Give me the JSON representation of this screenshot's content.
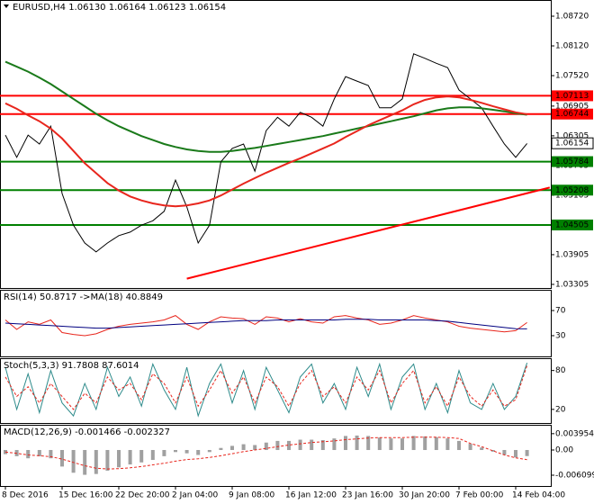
{
  "chart_data": [
    {
      "type": "line",
      "title": "EURUSD,H4 1.06130 1.06164 1.06123 1.06154",
      "categories": [
        "8 Dec 2016",
        null,
        null,
        null,
        null,
        "15 Dec 16:00",
        null,
        null,
        null,
        null,
        "22 Dec 20:00",
        null,
        null,
        null,
        null,
        "2 Jan 04:00",
        null,
        null,
        null,
        null,
        "9 Jan 08:00",
        null,
        null,
        null,
        null,
        "16 Jan 12:00",
        null,
        null,
        null,
        null,
        "23 Jan 16:00",
        null,
        null,
        null,
        null,
        "30 Jan 20:00",
        null,
        null,
        null,
        null,
        "7 Feb 00:00",
        null,
        null,
        null,
        null,
        "14 Feb 04:00",
        null
      ],
      "ylim": [
        1.03232,
        1.09047
      ],
      "yticks": [
        {
          "value": 1.0872,
          "label": "1.08720"
        },
        {
          "value": 1.0812,
          "label": "1.08120"
        },
        {
          "value": 1.0752,
          "label": "1.07520"
        },
        1.06905,
        1.06305,
        1.05705,
        1.05105,
        1.04505,
        1.03905,
        1.03305
      ],
      "series": [
        {
          "color": "#000000",
          "style": "solid",
          "values": [
            1.0632,
            1.0587,
            1.0632,
            1.0614,
            1.065,
            1.0514,
            1.045,
            1.0414,
            1.0396,
            1.0414,
            1.0429,
            1.0436,
            1.045,
            1.0459,
            1.0478,
            1.0541,
            1.0487,
            1.0414,
            1.045,
            1.0578,
            1.0605,
            1.0614,
            1.0559,
            1.0641,
            1.0668,
            1.065,
            1.0678,
            1.0668,
            1.065,
            1.0705,
            1.075,
            1.0741,
            1.0732,
            1.0687,
            1.0687,
            1.0705,
            1.0796,
            1.0787,
            1.0777,
            1.0768,
            1.0723,
            1.0705,
            1.0687,
            1.065,
            1.0614,
            1.0587,
            1.0615
          ]
        },
        {
          "color": "#1a7a1a",
          "style": "thick",
          "values": [
            1.078,
            1.077,
            1.076,
            1.0748,
            1.0735,
            1.072,
            1.0705,
            1.069,
            1.0675,
            1.0662,
            1.065,
            1.064,
            1.063,
            1.0622,
            1.0614,
            1.0608,
            1.0603,
            1.06,
            1.0598,
            1.0598,
            1.06,
            1.0603,
            1.0606,
            1.061,
            1.0614,
            1.0618,
            1.0622,
            1.0626,
            1.063,
            1.0635,
            1.064,
            1.0645,
            1.065,
            1.0655,
            1.066,
            1.0665,
            1.067,
            1.0676,
            1.0682,
            1.0686,
            1.0688,
            1.0688,
            1.0686,
            1.0683,
            1.068,
            1.0676,
            1.0673
          ]
        },
        {
          "color": "#e8261d",
          "style": "thick",
          "values": [
            1.0696,
            1.0685,
            1.0672,
            1.066,
            1.0645,
            1.0625,
            1.06,
            1.0575,
            1.0555,
            1.0535,
            1.052,
            1.0508,
            1.05,
            1.0494,
            1.049,
            1.0488,
            1.049,
            1.0494,
            1.05,
            1.051,
            1.0522,
            1.0534,
            1.0545,
            1.0556,
            1.0566,
            1.0576,
            1.0585,
            1.0595,
            1.0605,
            1.0615,
            1.0628,
            1.064,
            1.0652,
            1.0662,
            1.0672,
            1.0682,
            1.0694,
            1.0703,
            1.0708,
            1.071,
            1.0708,
            1.0703,
            1.0697,
            1.069,
            1.0684,
            1.0678,
            1.0674
          ]
        }
      ],
      "levels": [
        {
          "value": 1.07113,
          "color": "#ff0000"
        },
        {
          "value": 1.06744,
          "color": "#ff0000"
        },
        {
          "value": 1.05784,
          "color": "#008000"
        },
        {
          "value": 1.05208,
          "color": "#008000"
        },
        {
          "value": 1.04505,
          "color": "#008000"
        }
      ],
      "last_price": 1.06154,
      "trendline": {
        "color": "#ff0000",
        "from": {
          "index": 16,
          "price": 1.0342
        },
        "to": {
          "index": 48,
          "price": 1.0526
        }
      }
    },
    {
      "type": "line",
      "title": "RSI(14) 50.8717 ->MA(18) 40.8849",
      "ylim": [
        -3,
        103
      ],
      "yticks": [
        70,
        30
      ],
      "series": [
        {
          "color": "#e8261d",
          "style": "solid",
          "values": [
            55,
            40,
            52,
            48,
            55,
            35,
            32,
            30,
            33,
            40,
            45,
            48,
            50,
            52,
            55,
            62,
            48,
            40,
            52,
            60,
            58,
            57,
            48,
            60,
            58,
            52,
            57,
            52,
            50,
            60,
            62,
            58,
            55,
            48,
            50,
            55,
            62,
            58,
            55,
            52,
            45,
            42,
            40,
            38,
            36,
            38,
            50.8717
          ]
        },
        {
          "color": "#000080",
          "style": "solid",
          "values": [
            50,
            49,
            48,
            47,
            46,
            45,
            44,
            43,
            42,
            42,
            43,
            44,
            45,
            46,
            47,
            48,
            49,
            50,
            51,
            52,
            53,
            54,
            54,
            54,
            55,
            55,
            55,
            55,
            55,
            55,
            56,
            56,
            56,
            55,
            55,
            55,
            55,
            55,
            54,
            53,
            51,
            49,
            47,
            45,
            43,
            41,
            40.8849
          ]
        }
      ]
    },
    {
      "type": "line",
      "title": "Stoch(5,3,3) 91.7808 87.6014",
      "ylim": [
        -1,
        99
      ],
      "yticks": [
        80,
        20
      ],
      "series": [
        {
          "color": "#2e8b8b",
          "style": "solid",
          "values": [
            85,
            20,
            75,
            15,
            80,
            30,
            10,
            60,
            20,
            85,
            40,
            70,
            25,
            90,
            50,
            20,
            85,
            10,
            60,
            90,
            30,
            80,
            20,
            85,
            50,
            15,
            70,
            90,
            30,
            60,
            20,
            85,
            40,
            90,
            20,
            70,
            90,
            20,
            60,
            15,
            80,
            30,
            20,
            60,
            20,
            40,
            91.7808
          ]
        },
        {
          "color": "#e8261d",
          "style": "dashed",
          "values": [
            70,
            40,
            55,
            30,
            60,
            40,
            20,
            45,
            30,
            70,
            50,
            60,
            35,
            75,
            60,
            30,
            70,
            25,
            50,
            80,
            45,
            70,
            30,
            70,
            55,
            25,
            60,
            80,
            40,
            55,
            30,
            70,
            50,
            80,
            30,
            60,
            80,
            30,
            55,
            25,
            70,
            40,
            25,
            50,
            25,
            35,
            87.6014
          ]
        }
      ]
    },
    {
      "type": "line",
      "title": "MACD(12,26,9) -0.001466 -0.002327",
      "ylim": [
        -0.00871,
        0.0061
      ],
      "yticks": [
        0.003954,
        {
          "value": 0,
          "label": "0.00"
        },
        -0.006099
      ],
      "series": [
        {
          "color": "#a0a0a0",
          "style": "histogram",
          "values": [
            -0.001,
            -0.0015,
            -0.002,
            -0.0015,
            -0.002,
            -0.004,
            -0.0055,
            -0.006,
            -0.0058,
            -0.005,
            -0.0042,
            -0.0035,
            -0.003,
            -0.0024,
            -0.0015,
            -0.0005,
            -0.0008,
            -0.0012,
            -0.0005,
            0.0005,
            0.001,
            0.0014,
            0.0012,
            0.0018,
            0.0022,
            0.0022,
            0.0025,
            0.0025,
            0.0024,
            0.0028,
            0.0034,
            0.0035,
            0.0034,
            0.003,
            0.0028,
            0.0028,
            0.0034,
            0.0033,
            0.0031,
            0.0028,
            0.0022,
            0.0015,
            0.0006,
            -0.0004,
            -0.0012,
            -0.0018,
            -0.001466
          ]
        },
        {
          "color": "#e8261d",
          "style": "dashed",
          "values": [
            -0.0005,
            -0.0008,
            -0.0012,
            -0.0014,
            -0.0016,
            -0.0022,
            -0.003,
            -0.0038,
            -0.0044,
            -0.0046,
            -0.0045,
            -0.0043,
            -0.004,
            -0.0036,
            -0.0032,
            -0.0027,
            -0.0023,
            -0.0021,
            -0.0018,
            -0.0014,
            -0.0009,
            -0.0004,
            0,
            0.0004,
            0.0008,
            0.0012,
            0.0015,
            0.0018,
            0.002,
            0.0022,
            0.0025,
            0.0027,
            0.0029,
            0.003,
            0.003,
            0.003,
            0.0031,
            0.0031,
            0.0031,
            0.003,
            0.0028,
            0.0016,
            0.0008,
            -0.0002,
            -0.0012,
            -0.0019,
            -0.002327
          ]
        }
      ]
    }
  ]
}
